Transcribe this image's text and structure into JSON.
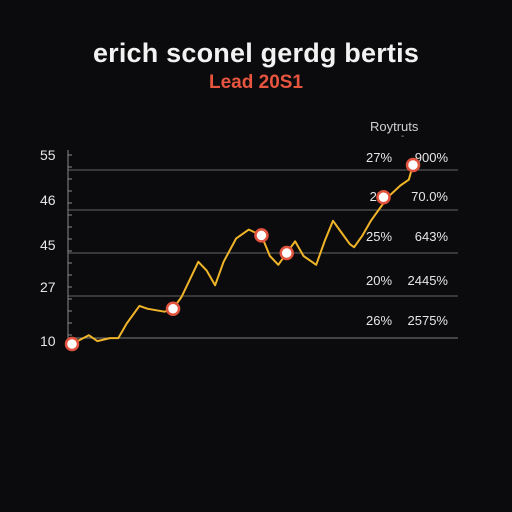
{
  "chart_data": {
    "type": "line",
    "title": "erich sconel gerdg bertis",
    "subtitle": "Lead 20S1",
    "legend": {
      "title": "Roytruts",
      "mark": "-",
      "placement": "top-right"
    },
    "y_tick_labels": [
      "55",
      "46",
      "45",
      "27",
      "10"
    ],
    "right_labels": [
      {
        "left": "27%",
        "right": "900%"
      },
      {
        "left": "2%",
        "right": "70.0%"
      },
      {
        "left": "25%",
        "right": "643%"
      },
      {
        "left": "20%",
        "right": "2445%"
      },
      {
        "left": "26%",
        "right": "2575%"
      }
    ],
    "grid": true,
    "series": [
      {
        "values": [
          [
            0,
            10
          ],
          [
            4,
            13
          ],
          [
            6,
            11
          ],
          [
            9,
            12
          ],
          [
            11,
            12
          ],
          [
            13,
            17
          ],
          [
            16,
            23
          ],
          [
            18,
            22
          ],
          [
            22,
            21
          ],
          [
            24,
            22
          ],
          [
            26,
            26
          ],
          [
            28,
            32
          ],
          [
            30,
            38
          ],
          [
            32,
            35
          ],
          [
            34,
            30
          ],
          [
            36,
            38
          ],
          [
            39,
            46
          ],
          [
            42,
            49
          ],
          [
            45,
            47
          ],
          [
            47,
            40
          ],
          [
            49,
            37
          ],
          [
            51,
            41
          ],
          [
            53,
            45
          ],
          [
            55,
            40
          ],
          [
            58,
            37
          ],
          [
            60,
            45
          ],
          [
            62,
            52
          ],
          [
            64,
            48
          ],
          [
            66,
            44
          ],
          [
            67,
            43
          ],
          [
            69,
            47
          ],
          [
            71,
            52
          ],
          [
            73,
            56
          ],
          [
            75,
            60
          ],
          [
            78,
            64
          ],
          [
            80,
            66
          ],
          [
            81,
            71
          ]
        ]
      }
    ],
    "highlighted_points": [
      [
        0,
        10
      ],
      [
        24,
        22
      ],
      [
        45,
        47
      ],
      [
        51,
        41
      ],
      [
        74,
        60
      ],
      [
        81,
        71
      ]
    ],
    "colors": {
      "line": "#f0b429",
      "marker_fill": "#ffffff",
      "marker_ring": "#e2533d",
      "subtitle": "#e8553f",
      "grid": "#8a8a8a"
    }
  }
}
